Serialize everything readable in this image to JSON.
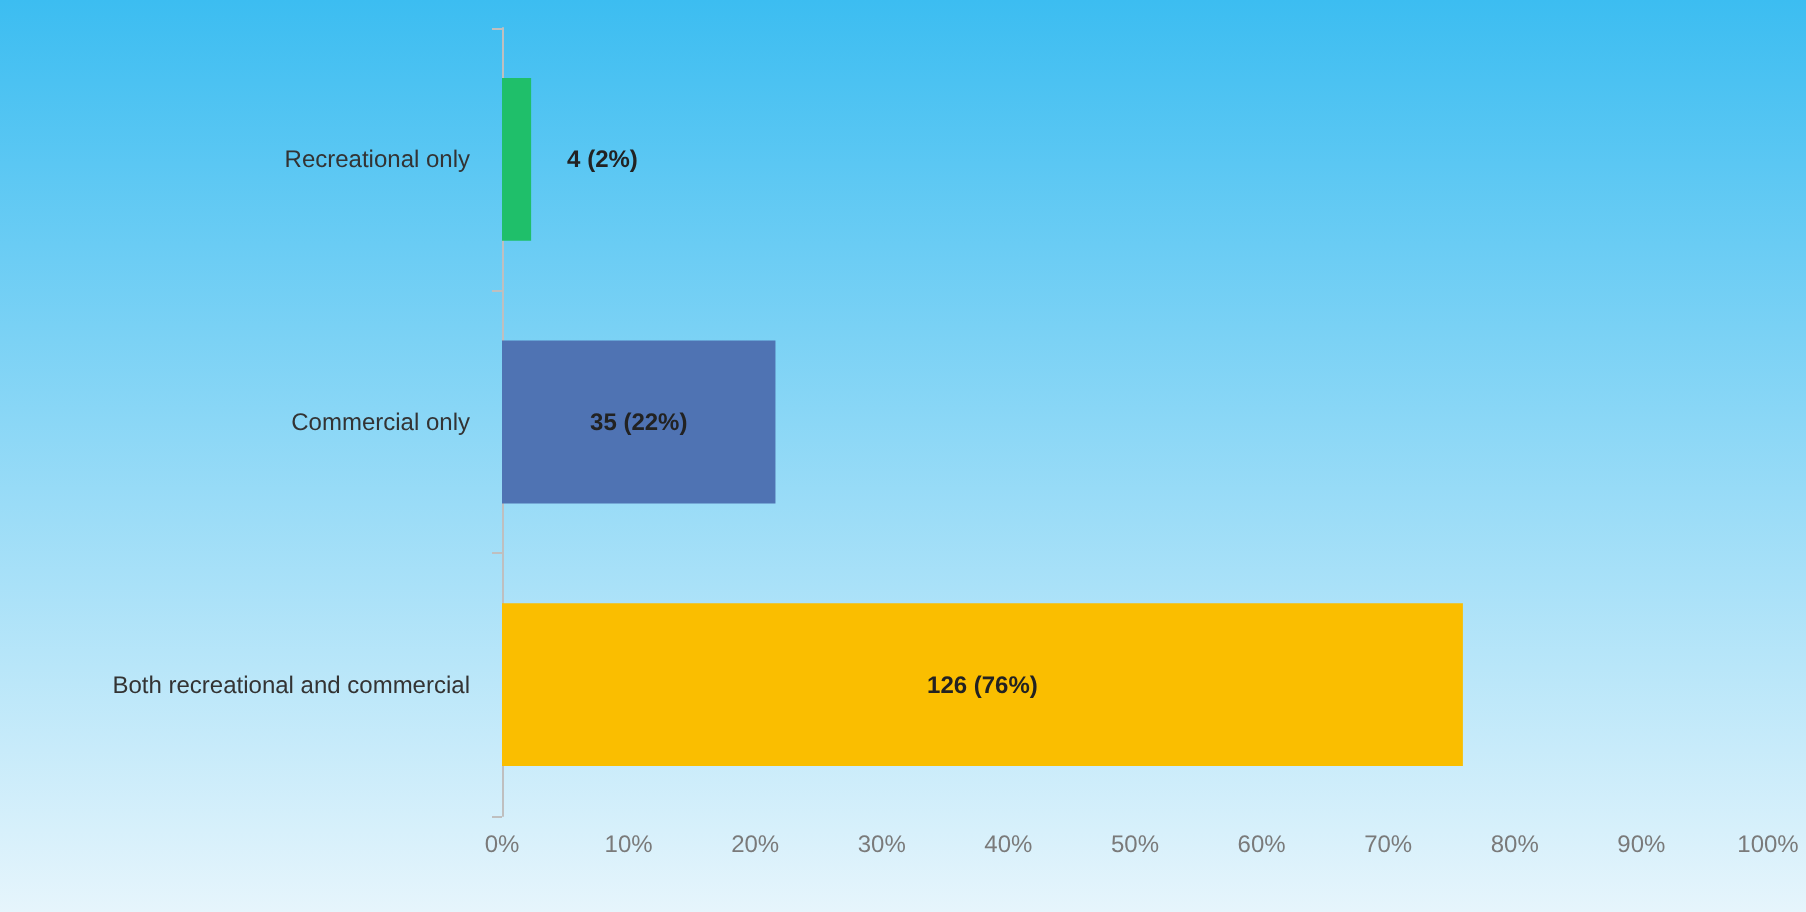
{
  "chart_data": {
    "type": "bar",
    "orientation": "horizontal",
    "categories": [
      "Recreational only",
      "Commercial only",
      "Both recreational and commercial"
    ],
    "values": [
      2.3,
      21.6,
      75.9
    ],
    "colors": [
      "#1fbf6a",
      "#4f73b3",
      "#fabe00"
    ],
    "value_labels": [
      "4 (2%)",
      "35 (22%)",
      "126 (76%)"
    ],
    "xlim": [
      0,
      100
    ],
    "xticks": [
      {
        "value": 0,
        "label": "0%"
      },
      {
        "value": 10,
        "label": "10%"
      },
      {
        "value": 20,
        "label": "20%"
      },
      {
        "value": 30,
        "label": "30%"
      },
      {
        "value": 40,
        "label": "40%"
      },
      {
        "value": 50,
        "label": "50%"
      },
      {
        "value": 60,
        "label": "60%"
      },
      {
        "value": 70,
        "label": "70%"
      },
      {
        "value": 80,
        "label": "80%"
      },
      {
        "value": 90,
        "label": "90%"
      },
      {
        "value": 100,
        "label": "100%"
      }
    ],
    "data_labels": false
  }
}
